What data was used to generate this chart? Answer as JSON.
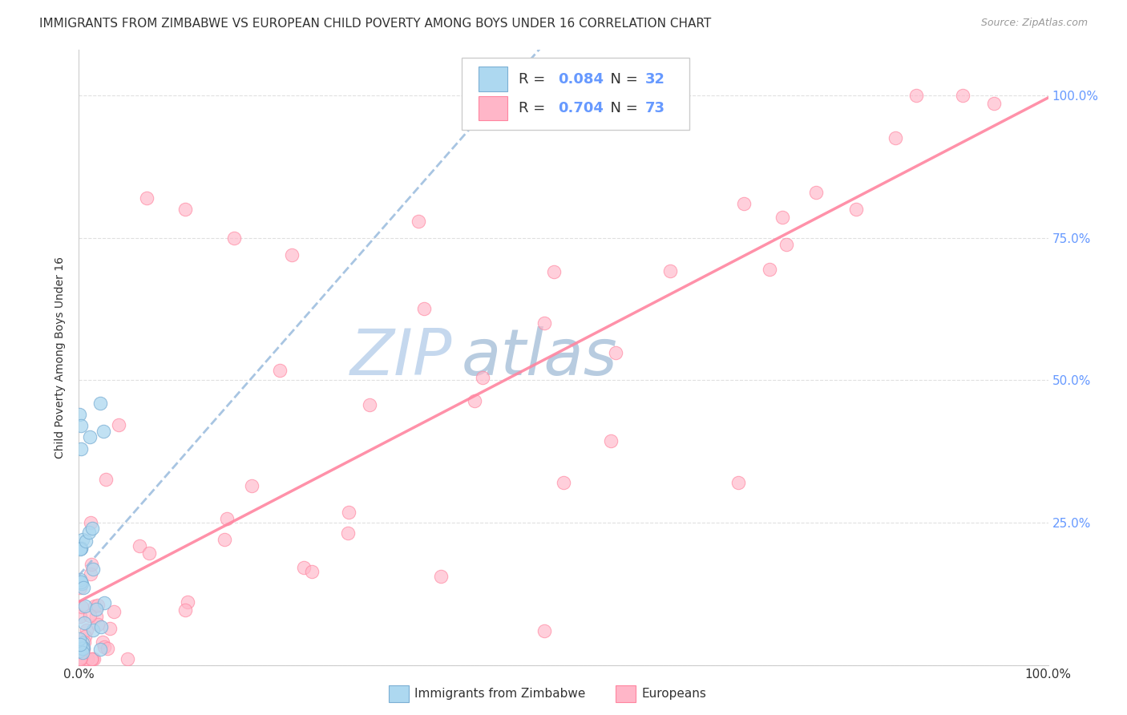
{
  "title": "IMMIGRANTS FROM ZIMBABWE VS EUROPEAN CHILD POVERTY AMONG BOYS UNDER 16 CORRELATION CHART",
  "source": "Source: ZipAtlas.com",
  "ylabel": "Child Poverty Among Boys Under 16",
  "legend1_label": "Immigrants from Zimbabwe",
  "legend2_label": "Europeans",
  "r1": 0.084,
  "n1": 32,
  "r2": 0.704,
  "n2": 73,
  "blue_color": "#ADD8F0",
  "blue_edge_color": "#7BAFD4",
  "pink_color": "#FFB6C8",
  "pink_edge_color": "#FF85A0",
  "trend_blue_color": "#99BBDD",
  "trend_pink_color": "#FF85A0",
  "watermark_zip_color": "#D0DFF0",
  "watermark_atlas_color": "#C8D8E8",
  "background_color": "#FFFFFF",
  "right_tick_color": "#6699FF",
  "grid_color": "#E0E0E0",
  "title_fontsize": 11,
  "axis_label_fontsize": 10,
  "tick_fontsize": 11,
  "watermark_fontsize": 58
}
